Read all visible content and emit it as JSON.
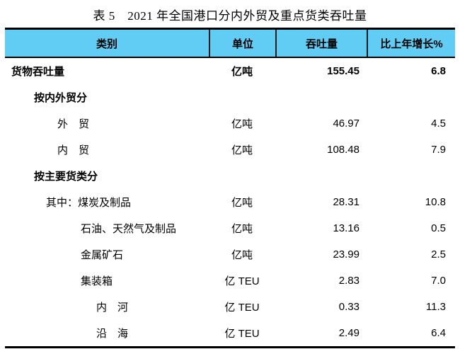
{
  "title": "表 5　2021 年全国港口分内外贸及重点货类吞吐量",
  "colors": {
    "header_bg": "#62CDF4",
    "border": "#000000"
  },
  "table": {
    "columns": [
      {
        "label": "类别"
      },
      {
        "label": "单位"
      },
      {
        "label": "吞吐量"
      },
      {
        "label": "比上年增长%"
      }
    ],
    "rows": [
      {
        "label": "货物吞吐量",
        "unit": "亿吨",
        "throughput": "155.45",
        "growth": "6.8",
        "bold": true,
        "indent": 9
      },
      {
        "label": "按内外贸分",
        "unit": "",
        "throughput": "",
        "growth": "",
        "bold": true,
        "indent": 41
      },
      {
        "label": "外　贸",
        "unit": "亿吨",
        "throughput": "46.97",
        "growth": "4.5",
        "bold": false,
        "indent": 74
      },
      {
        "label": "内　贸",
        "unit": "亿吨",
        "throughput": "108.48",
        "growth": "7.9",
        "bold": false,
        "indent": 74
      },
      {
        "label": "按主要货类分",
        "unit": "",
        "throughput": "",
        "growth": "",
        "bold": true,
        "indent": 41
      },
      {
        "label": "其中：煤炭及制品",
        "unit": "亿吨",
        "throughput": "28.31",
        "growth": "10.8",
        "bold": false,
        "indent": 58
      },
      {
        "label": "石油、天然气及制品",
        "unit": "亿吨",
        "throughput": "13.16",
        "growth": "0.5",
        "bold": false,
        "indent": 107
      },
      {
        "label": "金属矿石",
        "unit": "亿吨",
        "throughput": "23.99",
        "growth": "2.5",
        "bold": false,
        "indent": 107
      },
      {
        "label": "集装箱",
        "unit": "亿 TEU",
        "throughput": "2.83",
        "growth": "7.0",
        "bold": false,
        "indent": 107
      },
      {
        "label": "内　河",
        "unit": "亿 TEU",
        "throughput": "0.33",
        "growth": "11.3",
        "bold": false,
        "indent": 129
      },
      {
        "label": "沿　海",
        "unit": "亿 TEU",
        "throughput": "2.49",
        "growth": "6.4",
        "bold": false,
        "indent": 129
      }
    ]
  }
}
